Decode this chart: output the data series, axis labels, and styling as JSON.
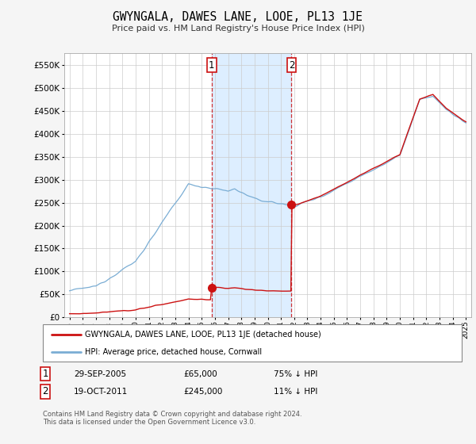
{
  "title": "GWYNGALA, DAWES LANE, LOOE, PL13 1JE",
  "subtitle": "Price paid vs. HM Land Registry's House Price Index (HPI)",
  "ylim": [
    0,
    575000
  ],
  "yticks": [
    0,
    50000,
    100000,
    150000,
    200000,
    250000,
    300000,
    350000,
    400000,
    450000,
    500000,
    550000
  ],
  "x_start_year": 1995,
  "x_end_year": 2025,
  "hpi_color": "#7aadd4",
  "price_color": "#cc1111",
  "sale1_year": 2005.75,
  "sale1_price": 65000,
  "sale2_year": 2011.8,
  "sale2_price": 245000,
  "legend_house_label": "GWYNGALA, DAWES LANE, LOOE, PL13 1JE (detached house)",
  "legend_hpi_label": "HPI: Average price, detached house, Cornwall",
  "annotation1_label": "1",
  "annotation1_date": "29-SEP-2005",
  "annotation1_price": "£65,000",
  "annotation1_hpi": "75% ↓ HPI",
  "annotation2_label": "2",
  "annotation2_date": "19-OCT-2011",
  "annotation2_price": "£245,000",
  "annotation2_hpi": "11% ↓ HPI",
  "footer": "Contains HM Land Registry data © Crown copyright and database right 2024.\nThis data is licensed under the Open Government Licence v3.0.",
  "fig_bg_color": "#f5f5f5",
  "plot_bg_color": "#ffffff",
  "grid_color": "#cccccc",
  "shaded_region_color": "#ddeeff"
}
